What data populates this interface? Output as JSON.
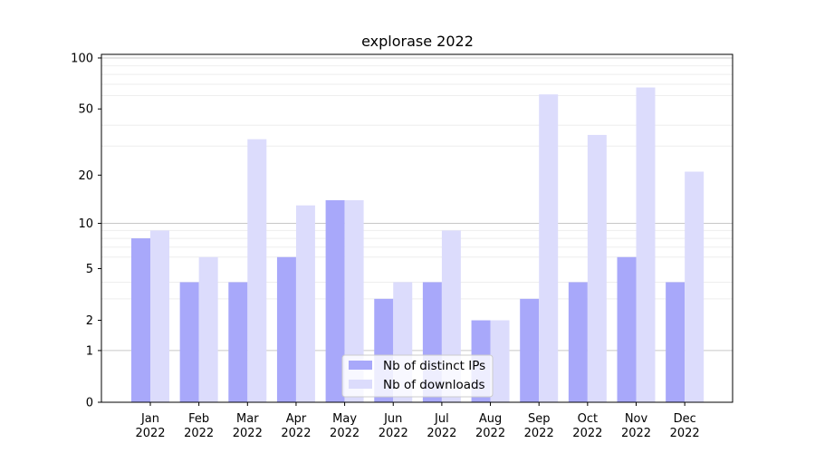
{
  "chart_data": {
    "type": "bar",
    "title": "explorase 2022",
    "xlabel": "",
    "ylabel": "",
    "yscale": "log(1+y)",
    "ylim": [
      0,
      105
    ],
    "y_ticks": [
      {
        "value": 0,
        "label": "0"
      },
      {
        "value": 1,
        "label": "1"
      },
      {
        "value": 2,
        "label": "2"
      },
      {
        "value": 5,
        "label": "5"
      },
      {
        "value": 10,
        "label": "10"
      },
      {
        "value": 20,
        "label": "20"
      },
      {
        "value": 50,
        "label": "50"
      },
      {
        "value": 100,
        "label": "100"
      }
    ],
    "categories": [
      {
        "month": "Jan",
        "year": "2022"
      },
      {
        "month": "Feb",
        "year": "2022"
      },
      {
        "month": "Mar",
        "year": "2022"
      },
      {
        "month": "Apr",
        "year": "2022"
      },
      {
        "month": "May",
        "year": "2022"
      },
      {
        "month": "Jun",
        "year": "2022"
      },
      {
        "month": "Jul",
        "year": "2022"
      },
      {
        "month": "Aug",
        "year": "2022"
      },
      {
        "month": "Sep",
        "year": "2022"
      },
      {
        "month": "Oct",
        "year": "2022"
      },
      {
        "month": "Nov",
        "year": "2022"
      },
      {
        "month": "Dec",
        "year": "2022"
      }
    ],
    "series": [
      {
        "name": "Nb of distinct IPs",
        "color": "#a8a8fa",
        "values": [
          8,
          4,
          4,
          6,
          14,
          3,
          4,
          2,
          3,
          4,
          6,
          4
        ]
      },
      {
        "name": "Nb of downloads",
        "color": "#dcdcfc",
        "values": [
          9,
          6,
          33,
          13,
          14,
          4,
          9,
          2,
          61,
          35,
          67,
          21
        ]
      }
    ],
    "legend_position": "bottom-center",
    "grid": true
  }
}
